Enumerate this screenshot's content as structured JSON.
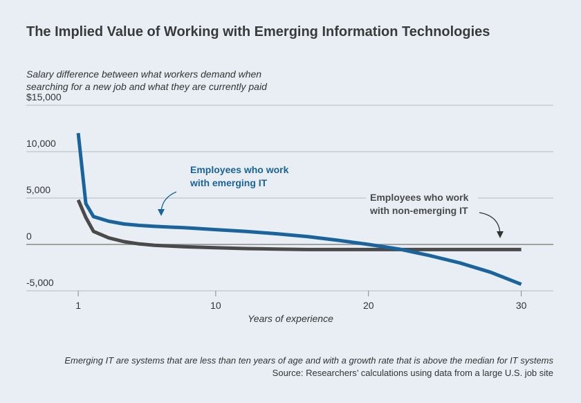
{
  "chart_data": {
    "type": "line",
    "title": "The Implied Value of Working with Emerging Information Technologies",
    "subtitle": [
      "Salary difference between what workers demand when",
      "searching for a new job and what they are currently paid"
    ],
    "x_label": "Years of experience",
    "x": [
      1,
      1.5,
      2,
      3,
      4,
      5,
      6,
      8,
      10,
      12,
      14,
      16,
      18,
      20,
      22,
      24,
      26,
      28,
      30
    ],
    "series": [
      {
        "name": "Employees who work with emerging IT",
        "color": "#19649e",
        "values": [
          12000,
          4400,
          3000,
          2500,
          2200,
          2050,
          1950,
          1800,
          1600,
          1400,
          1150,
          850,
          450,
          0,
          -500,
          -1200,
          -2000,
          -3000,
          -4300
        ]
      },
      {
        "name": "Employees who work with non-emerging IT",
        "color": "#4a4a4a",
        "values": [
          4800,
          2900,
          1400,
          700,
          300,
          50,
          -100,
          -250,
          -350,
          -450,
          -500,
          -550,
          -550,
          -550,
          -550,
          -550,
          -550,
          -550,
          -550
        ]
      }
    ],
    "annotations": [
      [
        "Employees who work",
        "with emerging IT"
      ],
      [
        "Employees who work",
        "with non-emerging IT"
      ]
    ],
    "xlim": [
      -2.4,
      32.1
    ],
    "xticks": [
      1,
      10,
      20,
      30
    ],
    "ylim": [
      -5000,
      15000
    ],
    "yticks": [
      {
        "value": -5000,
        "label": "-5,000"
      },
      0,
      {
        "value": 5000,
        "label": "5,000"
      },
      {
        "value": 10000,
        "label": "10,000"
      },
      {
        "value": 15000,
        "label": "$15,000"
      }
    ],
    "grid": true,
    "notes": [
      "Emerging IT are systems that are less than ten years of age and with a growth rate that is above the median for IT systems",
      "Source: Researchers’ calculations using data from a large U.S. job site"
    ]
  }
}
